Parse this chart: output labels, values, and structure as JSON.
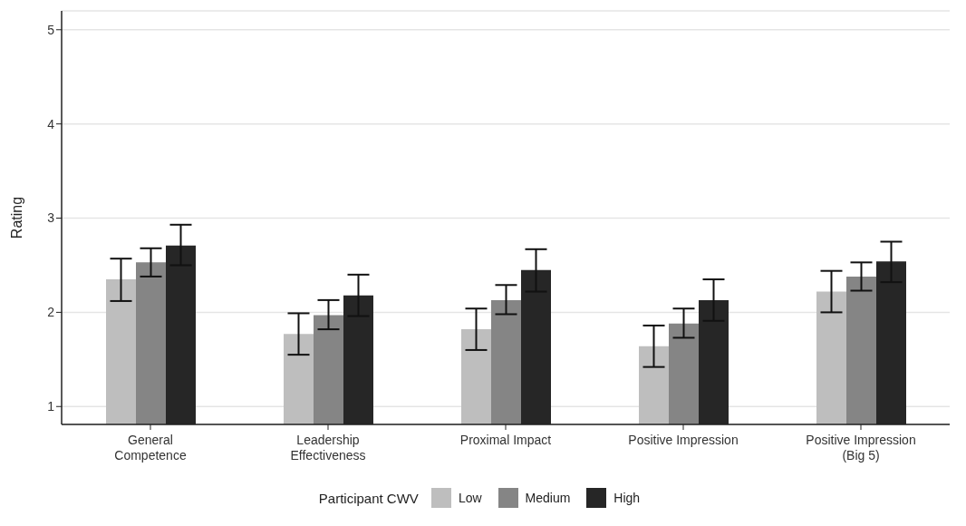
{
  "chart_data": {
    "type": "bar",
    "ylabel": "Rating",
    "legend_title": "Participant CWV",
    "legend": "bottom",
    "grid": "y",
    "categories": [
      "General\nCompetence",
      "Leadership\nEffectiveness",
      "Proximal Impact",
      "Positive Impression",
      "Positive Impression\n(Big 5)"
    ],
    "ylim": [
      0.81,
      5.2
    ],
    "yticks": [
      1,
      2,
      3,
      4,
      5
    ],
    "series": [
      {
        "name": "Low",
        "color": "#bebebe",
        "values": [
          2.35,
          1.77,
          1.82,
          1.64,
          2.22
        ],
        "errors": [
          [
            2.12,
            2.57
          ],
          [
            1.55,
            1.99
          ],
          [
            1.6,
            2.04
          ],
          [
            1.42,
            1.86
          ],
          [
            2.0,
            2.44
          ]
        ]
      },
      {
        "name": "Medium",
        "color": "#858585",
        "values": [
          2.53,
          1.97,
          2.13,
          1.88,
          2.38
        ],
        "errors": [
          [
            2.38,
            2.68
          ],
          [
            1.82,
            2.13
          ],
          [
            1.98,
            2.29
          ],
          [
            1.73,
            2.04
          ],
          [
            2.23,
            2.53
          ]
        ]
      },
      {
        "name": "High",
        "color": "#262626",
        "values": [
          2.71,
          2.18,
          2.45,
          2.13,
          2.54
        ],
        "errors": [
          [
            2.5,
            2.93
          ],
          [
            1.96,
            2.4
          ],
          [
            2.22,
            2.67
          ],
          [
            1.91,
            2.35
          ],
          [
            2.32,
            2.75
          ]
        ]
      }
    ]
  }
}
